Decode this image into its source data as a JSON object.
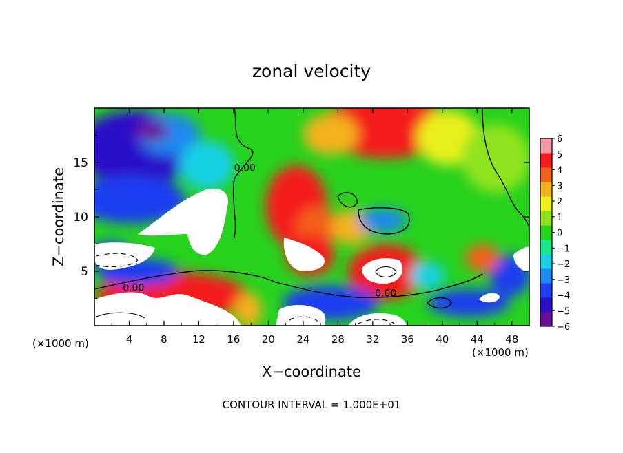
{
  "chart_data": {
    "type": "heatmap",
    "title": "zonal velocity",
    "xlabel": "X−coordinate",
    "ylabel": "Z−coordinate",
    "x_unit_left": "(×1000 m)",
    "x_unit_right": "(×1000 m)",
    "footer": "CONTOUR INTERVAL = 1.000E+01",
    "xlim": [
      0,
      50
    ],
    "ylim": [
      0,
      20
    ],
    "x_ticks": [
      4,
      8,
      12,
      16,
      20,
      24,
      28,
      32,
      36,
      40,
      44,
      48
    ],
    "y_ticks": [
      5,
      10,
      15
    ],
    "contour_labels": [
      {
        "text": "0.00",
        "x": 17.3,
        "z": 14.2
      },
      {
        "text": "0.00",
        "x": 4.5,
        "z": 3.2
      },
      {
        "text": "0.00",
        "x": 33.5,
        "z": 2.7
      }
    ],
    "colorbar": {
      "min": -6,
      "max": 6,
      "ticks": [
        6,
        5,
        4,
        3,
        2,
        1,
        0,
        -1,
        -2,
        -3,
        -4,
        -5,
        -6
      ],
      "tick_labels": [
        "6",
        "5",
        "4",
        "3",
        "2",
        "1",
        "0",
        "−1",
        "−2",
        "−3",
        "−4",
        "−5",
        "−6"
      ],
      "colors": [
        "#6a0f9c",
        "#2a10c8",
        "#1f3df0",
        "#1f88f0",
        "#19d0e6",
        "#1be88a",
        "#27d21e",
        "#8fe31c",
        "#e9f01b",
        "#f3b11b",
        "#f35f1b",
        "#f41b1b",
        "#f39aa8"
      ]
    }
  }
}
